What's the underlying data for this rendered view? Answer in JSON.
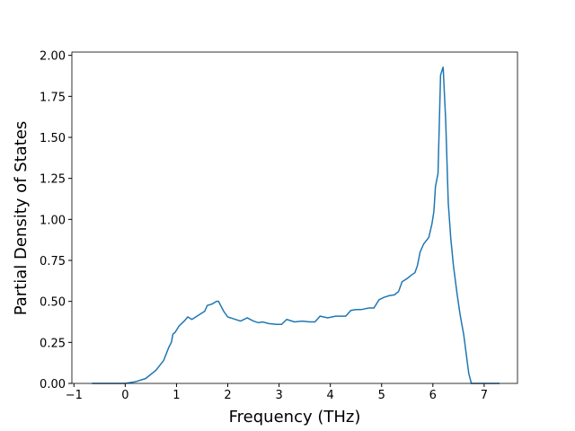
{
  "chart_data": {
    "type": "line",
    "xlabel": "Frequency (THz)",
    "ylabel": "Partial Density of States",
    "color": "#1f77b4",
    "x": [
      -0.65,
      0,
      0.2,
      0.4,
      0.6,
      0.75,
      0.85,
      0.9,
      0.93,
      0.97,
      1.05,
      1.15,
      1.22,
      1.3,
      1.4,
      1.55,
      1.6,
      1.7,
      1.78,
      1.82,
      1.92,
      2.0,
      2.1,
      2.25,
      2.38,
      2.5,
      2.6,
      2.68,
      2.8,
      2.95,
      3.05,
      3.15,
      3.3,
      3.45,
      3.6,
      3.7,
      3.8,
      3.95,
      4.1,
      4.3,
      4.4,
      4.5,
      4.6,
      4.75,
      4.85,
      4.95,
      5.05,
      5.15,
      5.25,
      5.33,
      5.4,
      5.5,
      5.58,
      5.65,
      5.7,
      5.75,
      5.82,
      5.92,
      5.98,
      6.02,
      6.05,
      6.1,
      6.15,
      6.2,
      6.25,
      6.3,
      6.35,
      6.4,
      6.47,
      6.53,
      6.6,
      6.65,
      6.7,
      6.75,
      7.3
    ],
    "values": [
      0,
      0,
      0.01,
      0.03,
      0.08,
      0.14,
      0.22,
      0.25,
      0.3,
      0.31,
      0.35,
      0.38,
      0.405,
      0.39,
      0.41,
      0.44,
      0.475,
      0.485,
      0.5,
      0.5,
      0.44,
      0.405,
      0.395,
      0.38,
      0.4,
      0.38,
      0.37,
      0.375,
      0.365,
      0.36,
      0.36,
      0.39,
      0.375,
      0.38,
      0.375,
      0.375,
      0.41,
      0.4,
      0.41,
      0.41,
      0.445,
      0.45,
      0.45,
      0.46,
      0.46,
      0.51,
      0.525,
      0.535,
      0.54,
      0.56,
      0.62,
      0.64,
      0.66,
      0.675,
      0.72,
      0.8,
      0.85,
      0.89,
      0.97,
      1.05,
      1.2,
      1.28,
      1.88,
      1.93,
      1.6,
      1.1,
      0.88,
      0.72,
      0.55,
      0.42,
      0.3,
      0.18,
      0.06,
      0,
      0
    ],
    "xlim": [
      -1.04,
      7.65
    ],
    "ylim": [
      0,
      2.02
    ],
    "xticks": [
      {
        "value": -1,
        "label": "−1"
      },
      0,
      1,
      2,
      3,
      4,
      5,
      6,
      7
    ],
    "yticks": [
      {
        "value": 0,
        "label": "0.00"
      },
      {
        "value": 0.25,
        "label": "0.25"
      },
      {
        "value": 0.5,
        "label": "0.50"
      },
      {
        "value": 0.75,
        "label": "0.75"
      },
      {
        "value": 1,
        "label": "1.00"
      },
      {
        "value": 1.25,
        "label": "1.25"
      },
      {
        "value": 1.5,
        "label": "1.50"
      },
      {
        "value": 1.75,
        "label": "1.75"
      },
      {
        "value": 2,
        "label": "2.00"
      }
    ]
  }
}
